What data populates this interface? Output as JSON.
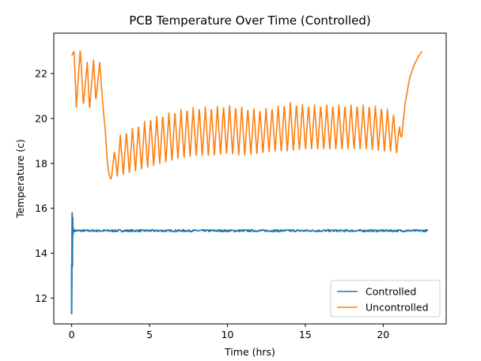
{
  "chart_data": {
    "type": "line",
    "title": "PCB Temperature Over Time (Controlled)",
    "xlabel": "Time (hrs)",
    "ylabel": "Temperature (c)",
    "xlim": [
      -1.15,
      24.05
    ],
    "ylim": [
      10.85,
      23.8
    ],
    "x_ticks": [
      0,
      5,
      10,
      15,
      20
    ],
    "y_ticks": [
      12,
      14,
      16,
      18,
      20,
      22
    ],
    "grid": false,
    "legend_position": "lower-right",
    "series": [
      {
        "name": "Controlled",
        "color": "#1f77b4",
        "noisy_band": [
          0.15,
          22.9,
          14.95,
          15.05
        ],
        "x": [
          0.0,
          0.0,
          0.03,
          0.05,
          0.06,
          0.08,
          0.1,
          0.15,
          0.3,
          1.0,
          3.0,
          5.0,
          8.0,
          10.0,
          13.0,
          15.0,
          18.0,
          20.0,
          22.0,
          22.9
        ],
        "y": [
          13.5,
          11.3,
          15.8,
          13.4,
          15.6,
          14.8,
          15.1,
          15.0,
          14.98,
          15.02,
          14.99,
          15.01,
          15.0,
          15.02,
          14.99,
          15.01,
          15.0,
          14.99,
          15.01,
          15.0
        ]
      },
      {
        "name": "Uncontrolled",
        "color": "#ff7f0e",
        "x": [
          0.0,
          0.15,
          0.3,
          0.55,
          0.75,
          1.0,
          1.15,
          1.4,
          1.55,
          1.8,
          2.0,
          2.15,
          2.3,
          2.4,
          2.5,
          2.6,
          3.0,
          4.0,
          5.0,
          6.0,
          7.0,
          8.0,
          9.0,
          10.0,
          11.0,
          12.0,
          13.0,
          14.0,
          15.0,
          16.0,
          17.0,
          18.0,
          19.0,
          20.0,
          20.6,
          21.0,
          21.2,
          21.4,
          21.7,
          22.0,
          22.3,
          22.5
        ],
        "y": [
          22.8,
          23.0,
          20.5,
          23.1,
          20.6,
          22.5,
          20.4,
          22.6,
          20.8,
          22.5,
          20.6,
          19.5,
          18.0,
          17.5,
          17.3,
          17.8,
          18.3,
          18.6,
          18.9,
          19.1,
          19.3,
          19.4,
          19.4,
          19.5,
          19.4,
          19.4,
          19.5,
          19.6,
          19.6,
          19.6,
          19.6,
          19.6,
          19.6,
          19.5,
          19.4,
          19.1,
          19.2,
          20.6,
          21.8,
          22.4,
          22.8,
          23.0
        ],
        "oscillation_amplitude": [
          0.0,
          0.0,
          0.0,
          0.0,
          0.0,
          0.0,
          0.0,
          0.0,
          0.0,
          0.0,
          0.0,
          0.0,
          0.0,
          0.0,
          0.0,
          0.4,
          0.9,
          1.0,
          1.1,
          1.1,
          1.1,
          1.1,
          1.1,
          1.1,
          1.1,
          1.0,
          1.0,
          1.1,
          1.0,
          1.0,
          1.0,
          1.0,
          1.0,
          1.0,
          0.9,
          0.7,
          0.0,
          0.0,
          0.0,
          0.0,
          0.0,
          0.0
        ],
        "oscillation_period_hrs": 0.39
      }
    ]
  }
}
